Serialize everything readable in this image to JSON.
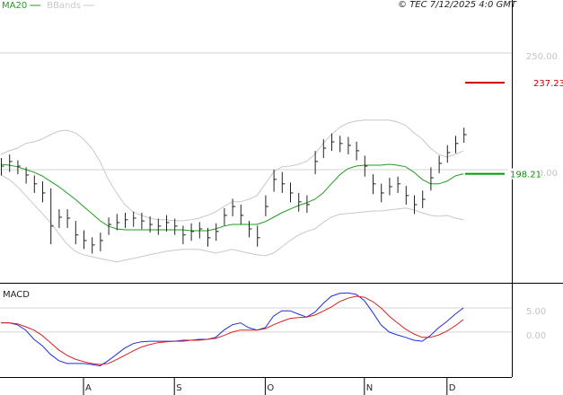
{
  "chart_data": [
    {
      "type": "ohlc",
      "source": "© TEC 7/12/2025 4:0 GMT",
      "ylim": [
        151.5,
        272.7
      ],
      "yticks": [
        {
          "value": 250,
          "label": "250.00"
        },
        {
          "value": 200,
          "label": "200.00"
        }
      ],
      "grid": true,
      "bar_color": "#222222",
      "high": [
        205,
        206.5,
        204,
        201,
        197.5,
        195,
        192,
        183,
        183,
        178,
        174,
        171,
        173,
        179.5,
        181,
        181.5,
        182,
        181.5,
        180,
        179,
        180.5,
        179,
        176,
        177,
        177.5,
        175,
        177,
        183.5,
        187.5,
        185,
        178,
        176,
        189,
        200,
        199,
        194.5,
        190,
        189,
        208,
        213,
        215.5,
        214.5,
        214,
        212,
        206,
        198,
        194,
        196.5,
        197,
        193,
        189,
        191,
        201,
        206,
        210.5,
        214.5,
        218
      ],
      "low": [
        197.5,
        199,
        198,
        194,
        190,
        186,
        168,
        175,
        175,
        168,
        166,
        164,
        165,
        172,
        174,
        175,
        175.5,
        174.5,
        173,
        172,
        173.5,
        172,
        168,
        169.5,
        170.5,
        167,
        169.5,
        176,
        180,
        176.5,
        171,
        167,
        180,
        190.5,
        190,
        186,
        182,
        181.5,
        198,
        205,
        208,
        207.5,
        206.5,
        204,
        197,
        189.5,
        186,
        189,
        190,
        185,
        181,
        183.5,
        191,
        198.5,
        203,
        207,
        211.5
      ],
      "close": [
        201.5,
        203.5,
        201.5,
        197.7,
        193.9,
        190,
        175.8,
        179.6,
        179.2,
        172,
        169.6,
        167.7,
        169.6,
        176.5,
        177.3,
        178.5,
        179.2,
        178,
        176.5,
        175.8,
        177.3,
        175.8,
        172,
        173.5,
        174.6,
        170.8,
        173.5,
        180.4,
        184.2,
        180.4,
        174.6,
        170.8,
        184.2,
        195.8,
        193.9,
        190,
        186.2,
        185,
        203.5,
        209.2,
        211.9,
        211.2,
        210.4,
        208.1,
        201.5,
        193.9,
        190,
        192.7,
        193.9,
        188.9,
        185,
        187.3,
        196.5,
        202.7,
        207.3,
        211.2,
        215
      ],
      "series": [
        {
          "name": "MA20",
          "color": "#1f9e1f",
          "values": [
            202.3,
            201.9,
            201.2,
            200.0,
            198.9,
            197.3,
            195.0,
            192.7,
            190.0,
            187.3,
            184.2,
            181.2,
            178.1,
            175.8,
            174.6,
            174.2,
            174.2,
            174.2,
            174.2,
            174.2,
            174.2,
            174.2,
            174.2,
            173.8,
            173.8,
            173.8,
            174.6,
            175.8,
            176.5,
            176.5,
            176.5,
            176.5,
            177.7,
            179.6,
            181.5,
            183.1,
            184.6,
            185.8,
            187.3,
            190.0,
            193.9,
            197.7,
            200.4,
            201.5,
            201.9,
            201.9,
            201.9,
            202.3,
            201.9,
            201.2,
            198.9,
            195.8,
            193.9,
            193.9,
            195.0,
            197.3,
            198.21
          ]
        },
        {
          "name": "BBands",
          "color": "#c8c8c8",
          "upper": [
            206.5,
            208.1,
            209.2,
            211.2,
            211.9,
            213.1,
            215,
            216.5,
            216.9,
            215.8,
            213.1,
            209.2,
            203.5,
            195.8,
            190,
            185,
            181.9,
            180.4,
            179.2,
            178.5,
            178.5,
            178.1,
            178.1,
            178.5,
            179.2,
            180.4,
            181.9,
            184.2,
            186.2,
            186.2,
            187.3,
            188.9,
            193.9,
            198.9,
            201.2,
            201.5,
            202.3,
            203.5,
            206.5,
            211.2,
            215,
            218.1,
            220,
            220.8,
            221.2,
            221.2,
            221.2,
            221.2,
            220.4,
            218.9,
            215.8,
            213.1,
            209.2,
            206.5,
            205.4,
            206.5,
            208.1
          ],
          "lower": [
            197.7,
            195.8,
            192.7,
            188.9,
            185,
            181.2,
            177.3,
            172.7,
            168.1,
            165,
            163.5,
            162.7,
            161.9,
            161.2,
            160.4,
            161.2,
            161.9,
            162.7,
            163.5,
            164.2,
            165,
            165.4,
            165.8,
            165.8,
            165.8,
            165,
            164.2,
            165,
            165.8,
            165,
            164.2,
            163.5,
            163.1,
            164.2,
            166.9,
            169.6,
            171.9,
            173.5,
            174.6,
            177.3,
            179.6,
            180.8,
            181.2,
            181.5,
            181.9,
            182.3,
            182.3,
            182.7,
            183.1,
            183.5,
            182.7,
            181.5,
            180.4,
            180,
            180.4,
            179.2,
            178.5
          ]
        }
      ],
      "price_labels": [
        {
          "value": 237.23,
          "label": "237.23",
          "color": "#cc0000"
        },
        {
          "value": 198.21,
          "label": "198.21",
          "color": "#009900"
        }
      ]
    },
    {
      "type": "line",
      "title": "MACD",
      "ylim": [
        -9.3,
        10
      ],
      "yticks": [
        {
          "value": 5,
          "label": "5.00"
        },
        {
          "value": 0,
          "label": "0.00"
        }
      ],
      "grid": true,
      "categories": [
        null,
        null,
        null,
        null,
        null,
        null,
        null,
        null,
        null,
        null,
        "A",
        null,
        null,
        null,
        null,
        null,
        null,
        null,
        null,
        null,
        null,
        "S",
        null,
        null,
        null,
        null,
        null,
        null,
        null,
        null,
        null,
        null,
        "O",
        null,
        null,
        null,
        null,
        null,
        null,
        null,
        null,
        null,
        null,
        null,
        "N",
        null,
        null,
        null,
        null,
        null,
        null,
        null,
        null,
        null,
        "D",
        null,
        null
      ],
      "series": [
        {
          "color": "#1f2fd8",
          "values": [
            1.9,
            1.9,
            1.5,
            0.4,
            -1.5,
            -2.8,
            -4.6,
            -5.9,
            -6.5,
            -6.5,
            -6.5,
            -6.7,
            -7.0,
            -5.9,
            -4.6,
            -3.3,
            -2.4,
            -2.0,
            -1.9,
            -1.9,
            -1.9,
            -1.9,
            -1.7,
            -1.7,
            -1.5,
            -1.5,
            -1.1,
            0.4,
            1.5,
            1.9,
            0.9,
            0.4,
            0.9,
            3.3,
            4.4,
            4.4,
            3.7,
            3.1,
            4.1,
            5.9,
            7.4,
            8.0,
            8.1,
            7.8,
            6.5,
            4.1,
            1.5,
            0,
            -0.6,
            -1.1,
            -1.7,
            -1.9,
            -0.7,
            0.9,
            2.2,
            3.7,
            5.0
          ]
        },
        {
          "color": "#d82020",
          "values": [
            1.9,
            1.9,
            1.7,
            1.1,
            0.4,
            -0.7,
            -2.2,
            -3.7,
            -4.8,
            -5.6,
            -6.1,
            -6.5,
            -6.7,
            -6.5,
            -5.7,
            -4.8,
            -3.9,
            -3.1,
            -2.6,
            -2.2,
            -2.0,
            -1.9,
            -1.9,
            -1.7,
            -1.7,
            -1.5,
            -1.3,
            -0.7,
            0,
            0.4,
            0.4,
            0.4,
            0.7,
            1.5,
            2.2,
            2.8,
            3.0,
            3.1,
            3.5,
            4.3,
            5.2,
            6.3,
            7.0,
            7.4,
            7.2,
            6.3,
            5.0,
            3.3,
            1.9,
            0.6,
            -0.4,
            -1.1,
            -1.1,
            -0.6,
            0.2,
            1.3,
            2.6
          ]
        }
      ]
    }
  ]
}
